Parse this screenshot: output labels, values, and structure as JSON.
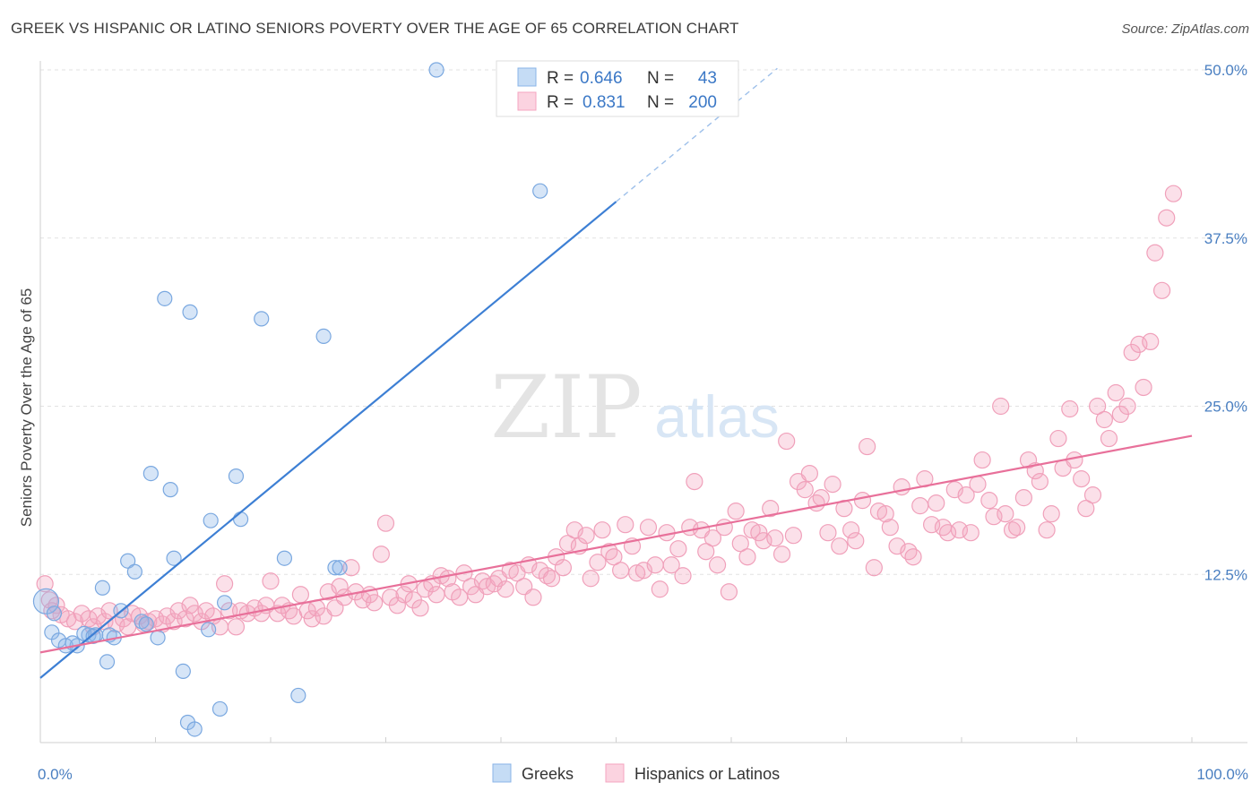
{
  "header": {
    "title": "GREEK VS HISPANIC OR LATINO SENIORS POVERTY OVER THE AGE OF 65 CORRELATION CHART",
    "source": "Source: ZipAtlas.com"
  },
  "watermark": {
    "zip": "ZIP",
    "atlas": "atlas"
  },
  "legend": {
    "rows": [
      {
        "r_label": "R =",
        "r_value": "0.646",
        "n_label": "N =",
        "n_value": "43",
        "color": "#8ab4e8"
      },
      {
        "r_label": "R =",
        "r_value": "0.831",
        "n_label": "N =",
        "n_value": "200",
        "color": "#f4a6c0"
      }
    ]
  },
  "bottom_legend": {
    "items": [
      {
        "label": "Greeks",
        "color": "#8ab4e8"
      },
      {
        "label": "Hispanics or Latinos",
        "color": "#f4a6c0"
      }
    ]
  },
  "chart_data": {
    "type": "scatter",
    "title": "GREEK VS HISPANIC OR LATINO SENIORS POVERTY OVER THE AGE OF 65 CORRELATION CHART",
    "xlabel": "",
    "ylabel": "Seniors Poverty Over the Age of 65",
    "xlim": [
      0,
      100
    ],
    "ylim": [
      0,
      50
    ],
    "x_tick_labels": [
      "0.0%",
      "100.0%"
    ],
    "y_ticks": [
      12.5,
      25.0,
      37.5,
      50.0
    ],
    "y_tick_labels": [
      "12.5%",
      "25.0%",
      "37.5%",
      "50.0%"
    ],
    "grid": true,
    "legend_position": "top-center",
    "series": [
      {
        "name": "Greeks",
        "color": "#5b9be0",
        "trend": {
          "x0": 0,
          "y0": 4.8,
          "x1": 50,
          "y1": 40.2,
          "dashed_to_x": 64
        },
        "points": [
          [
            0.5,
            10.5
          ],
          [
            1.0,
            8.2
          ],
          [
            1.6,
            7.6
          ],
          [
            2.2,
            7.2
          ],
          [
            3.2,
            7.2
          ],
          [
            4.2,
            8.0
          ],
          [
            4.8,
            8.0
          ],
          [
            6.0,
            8.0
          ],
          [
            5.4,
            11.5
          ],
          [
            5.8,
            6.0
          ],
          [
            6.4,
            7.8
          ],
          [
            7.0,
            9.8
          ],
          [
            7.6,
            13.5
          ],
          [
            8.2,
            12.7
          ],
          [
            8.8,
            9.0
          ],
          [
            9.6,
            20.0
          ],
          [
            10.2,
            7.8
          ],
          [
            10.8,
            33.0
          ],
          [
            11.3,
            18.8
          ],
          [
            11.6,
            13.7
          ],
          [
            12.4,
            5.3
          ],
          [
            12.8,
            1.5
          ],
          [
            13.0,
            32.0
          ],
          [
            13.4,
            1.0
          ],
          [
            14.6,
            8.4
          ],
          [
            14.8,
            16.5
          ],
          [
            15.6,
            2.5
          ],
          [
            16.0,
            10.4
          ],
          [
            17.0,
            19.8
          ],
          [
            17.4,
            16.6
          ],
          [
            19.2,
            31.5
          ],
          [
            21.2,
            13.7
          ],
          [
            22.4,
            3.5
          ],
          [
            24.6,
            30.2
          ],
          [
            25.6,
            13.0
          ],
          [
            26.0,
            13.0
          ],
          [
            34.4,
            50.0
          ],
          [
            43.4,
            41.0
          ],
          [
            1.2,
            9.6
          ],
          [
            3.8,
            8.1
          ],
          [
            4.6,
            7.9
          ],
          [
            2.8,
            7.4
          ],
          [
            9.2,
            8.8
          ]
        ]
      },
      {
        "name": "Hispanics or Latinos",
        "color": "#ef84a6",
        "trend": {
          "x0": 0,
          "y0": 6.7,
          "x1": 100,
          "y1": 22.8
        },
        "points": [
          [
            0.4,
            11.8
          ],
          [
            0.8,
            10.6
          ],
          [
            1.4,
            10.2
          ],
          [
            1.8,
            9.5
          ],
          [
            2.4,
            9.2
          ],
          [
            3.0,
            9.0
          ],
          [
            3.6,
            9.6
          ],
          [
            4.2,
            9.2
          ],
          [
            4.6,
            8.6
          ],
          [
            5.0,
            9.4
          ],
          [
            5.6,
            9.0
          ],
          [
            6.0,
            9.8
          ],
          [
            6.6,
            8.8
          ],
          [
            7.2,
            9.2
          ],
          [
            7.6,
            8.6
          ],
          [
            8.0,
            9.6
          ],
          [
            8.6,
            9.4
          ],
          [
            9.0,
            8.8
          ],
          [
            9.4,
            9.0
          ],
          [
            10.0,
            9.2
          ],
          [
            10.6,
            8.8
          ],
          [
            11.0,
            9.4
          ],
          [
            11.6,
            9.0
          ],
          [
            12.0,
            9.8
          ],
          [
            12.6,
            9.2
          ],
          [
            13.0,
            10.2
          ],
          [
            13.4,
            9.6
          ],
          [
            14.0,
            9.0
          ],
          [
            14.4,
            9.8
          ],
          [
            15.0,
            9.4
          ],
          [
            15.6,
            8.6
          ],
          [
            16.0,
            11.8
          ],
          [
            16.4,
            9.8
          ],
          [
            17.0,
            8.6
          ],
          [
            17.4,
            9.8
          ],
          [
            18.0,
            9.6
          ],
          [
            18.6,
            10.0
          ],
          [
            19.2,
            9.6
          ],
          [
            19.6,
            10.2
          ],
          [
            20.0,
            12.0
          ],
          [
            20.6,
            9.6
          ],
          [
            21.0,
            10.2
          ],
          [
            21.6,
            9.8
          ],
          [
            22.0,
            9.4
          ],
          [
            22.6,
            11.0
          ],
          [
            23.2,
            9.8
          ],
          [
            23.6,
            9.2
          ],
          [
            24.0,
            10.0
          ],
          [
            24.6,
            9.4
          ],
          [
            25.0,
            11.2
          ],
          [
            25.6,
            10.0
          ],
          [
            26.0,
            11.6
          ],
          [
            26.4,
            10.8
          ],
          [
            27.0,
            13.0
          ],
          [
            27.4,
            11.2
          ],
          [
            28.0,
            10.6
          ],
          [
            28.6,
            11.0
          ],
          [
            29.0,
            10.4
          ],
          [
            29.6,
            14.0
          ],
          [
            30.0,
            16.3
          ],
          [
            30.4,
            10.8
          ],
          [
            31.0,
            10.2
          ],
          [
            31.6,
            11.0
          ],
          [
            32.0,
            11.8
          ],
          [
            32.4,
            10.6
          ],
          [
            33.0,
            10.0
          ],
          [
            33.4,
            11.4
          ],
          [
            34.0,
            11.8
          ],
          [
            34.4,
            11.0
          ],
          [
            34.8,
            12.4
          ],
          [
            35.4,
            12.2
          ],
          [
            35.8,
            11.2
          ],
          [
            36.4,
            10.8
          ],
          [
            36.8,
            12.6
          ],
          [
            37.4,
            11.6
          ],
          [
            37.8,
            11.0
          ],
          [
            38.4,
            12.0
          ],
          [
            38.8,
            11.6
          ],
          [
            39.4,
            11.8
          ],
          [
            39.8,
            12.2
          ],
          [
            40.4,
            11.4
          ],
          [
            40.8,
            12.8
          ],
          [
            41.4,
            12.6
          ],
          [
            42.0,
            11.6
          ],
          [
            42.4,
            13.2
          ],
          [
            42.8,
            10.8
          ],
          [
            43.4,
            12.8
          ],
          [
            44.0,
            12.4
          ],
          [
            44.4,
            12.2
          ],
          [
            44.8,
            13.8
          ],
          [
            45.4,
            13.0
          ],
          [
            45.8,
            14.8
          ],
          [
            46.4,
            15.8
          ],
          [
            46.8,
            14.6
          ],
          [
            47.4,
            15.4
          ],
          [
            47.8,
            12.2
          ],
          [
            48.4,
            13.4
          ],
          [
            48.8,
            15.8
          ],
          [
            49.4,
            14.2
          ],
          [
            49.8,
            13.8
          ],
          [
            50.4,
            12.8
          ],
          [
            50.8,
            16.2
          ],
          [
            51.4,
            14.6
          ],
          [
            51.8,
            12.6
          ],
          [
            52.4,
            12.8
          ],
          [
            52.8,
            16.0
          ],
          [
            53.4,
            13.2
          ],
          [
            53.8,
            11.4
          ],
          [
            54.4,
            15.6
          ],
          [
            54.8,
            13.2
          ],
          [
            55.4,
            14.4
          ],
          [
            55.8,
            12.4
          ],
          [
            56.4,
            16.0
          ],
          [
            56.8,
            19.4
          ],
          [
            57.4,
            15.8
          ],
          [
            57.8,
            14.2
          ],
          [
            58.4,
            15.2
          ],
          [
            58.8,
            13.2
          ],
          [
            59.4,
            16.0
          ],
          [
            59.8,
            11.2
          ],
          [
            60.4,
            17.2
          ],
          [
            60.8,
            14.8
          ],
          [
            61.4,
            13.8
          ],
          [
            61.8,
            15.8
          ],
          [
            62.4,
            15.6
          ],
          [
            62.8,
            15.0
          ],
          [
            63.4,
            17.4
          ],
          [
            63.8,
            15.2
          ],
          [
            64.4,
            14.0
          ],
          [
            64.8,
            22.4
          ],
          [
            65.4,
            15.4
          ],
          [
            65.8,
            19.4
          ],
          [
            66.4,
            18.8
          ],
          [
            66.8,
            20.0
          ],
          [
            67.4,
            17.8
          ],
          [
            67.8,
            18.2
          ],
          [
            68.4,
            15.6
          ],
          [
            68.8,
            19.2
          ],
          [
            69.4,
            14.6
          ],
          [
            69.8,
            17.4
          ],
          [
            70.4,
            15.8
          ],
          [
            70.8,
            15.0
          ],
          [
            71.4,
            18.0
          ],
          [
            71.8,
            22.0
          ],
          [
            72.4,
            13.0
          ],
          [
            72.8,
            17.2
          ],
          [
            73.4,
            17.0
          ],
          [
            73.8,
            16.0
          ],
          [
            74.4,
            14.6
          ],
          [
            74.8,
            19.0
          ],
          [
            75.4,
            14.2
          ],
          [
            75.8,
            13.8
          ],
          [
            76.4,
            17.6
          ],
          [
            76.8,
            19.6
          ],
          [
            77.4,
            16.2
          ],
          [
            77.8,
            17.8
          ],
          [
            78.4,
            16.0
          ],
          [
            78.8,
            15.6
          ],
          [
            79.4,
            18.8
          ],
          [
            79.8,
            15.8
          ],
          [
            80.4,
            18.4
          ],
          [
            80.8,
            15.6
          ],
          [
            81.4,
            19.2
          ],
          [
            81.8,
            21.0
          ],
          [
            82.4,
            18.0
          ],
          [
            82.8,
            16.8
          ],
          [
            83.4,
            25.0
          ],
          [
            83.8,
            17.0
          ],
          [
            84.4,
            15.8
          ],
          [
            84.8,
            16.0
          ],
          [
            85.4,
            18.2
          ],
          [
            85.8,
            21.0
          ],
          [
            86.4,
            20.2
          ],
          [
            86.8,
            19.4
          ],
          [
            87.4,
            15.8
          ],
          [
            87.8,
            17.0
          ],
          [
            88.4,
            22.6
          ],
          [
            88.8,
            20.4
          ],
          [
            89.4,
            24.8
          ],
          [
            89.8,
            21.0
          ],
          [
            90.4,
            19.6
          ],
          [
            90.8,
            17.4
          ],
          [
            91.4,
            18.4
          ],
          [
            91.8,
            25.0
          ],
          [
            92.4,
            24.0
          ],
          [
            92.8,
            22.6
          ],
          [
            93.4,
            26.0
          ],
          [
            93.8,
            24.4
          ],
          [
            94.4,
            25.0
          ],
          [
            94.8,
            29.0
          ],
          [
            95.4,
            29.6
          ],
          [
            95.8,
            26.4
          ],
          [
            96.4,
            29.8
          ],
          [
            96.8,
            36.4
          ],
          [
            97.4,
            33.6
          ],
          [
            97.8,
            39.0
          ],
          [
            98.4,
            40.8
          ],
          [
            1.0,
            9.8
          ]
        ]
      }
    ]
  }
}
